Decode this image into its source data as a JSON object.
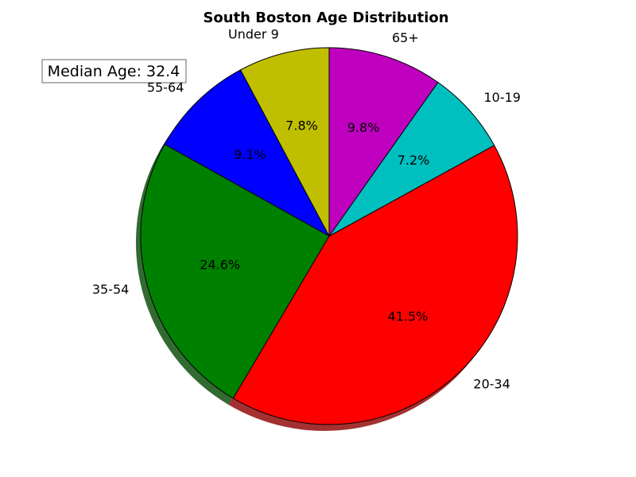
{
  "chart_data": {
    "type": "pie",
    "title": "South Boston Age Distribution",
    "annotation": "Median Age: 32.4",
    "start_angle_deg": 90,
    "direction": "counterclockwise",
    "shadow": true,
    "slices": [
      {
        "label": "Under 9",
        "value": 7.8,
        "pct_label": "7.8%",
        "color": "#bfbf00"
      },
      {
        "label": "55-64",
        "value": 9.1,
        "pct_label": "9.1%",
        "color": "#0000ff"
      },
      {
        "label": "35-54",
        "value": 24.6,
        "pct_label": "24.6%",
        "color": "#008000"
      },
      {
        "label": "20-34",
        "value": 41.5,
        "pct_label": "41.5%",
        "color": "#ff0000"
      },
      {
        "label": "10-19",
        "value": 7.2,
        "pct_label": "7.2%",
        "color": "#00bfbf"
      },
      {
        "label": "65+",
        "value": 9.8,
        "pct_label": "9.8%",
        "color": "#bf00bf"
      }
    ]
  }
}
